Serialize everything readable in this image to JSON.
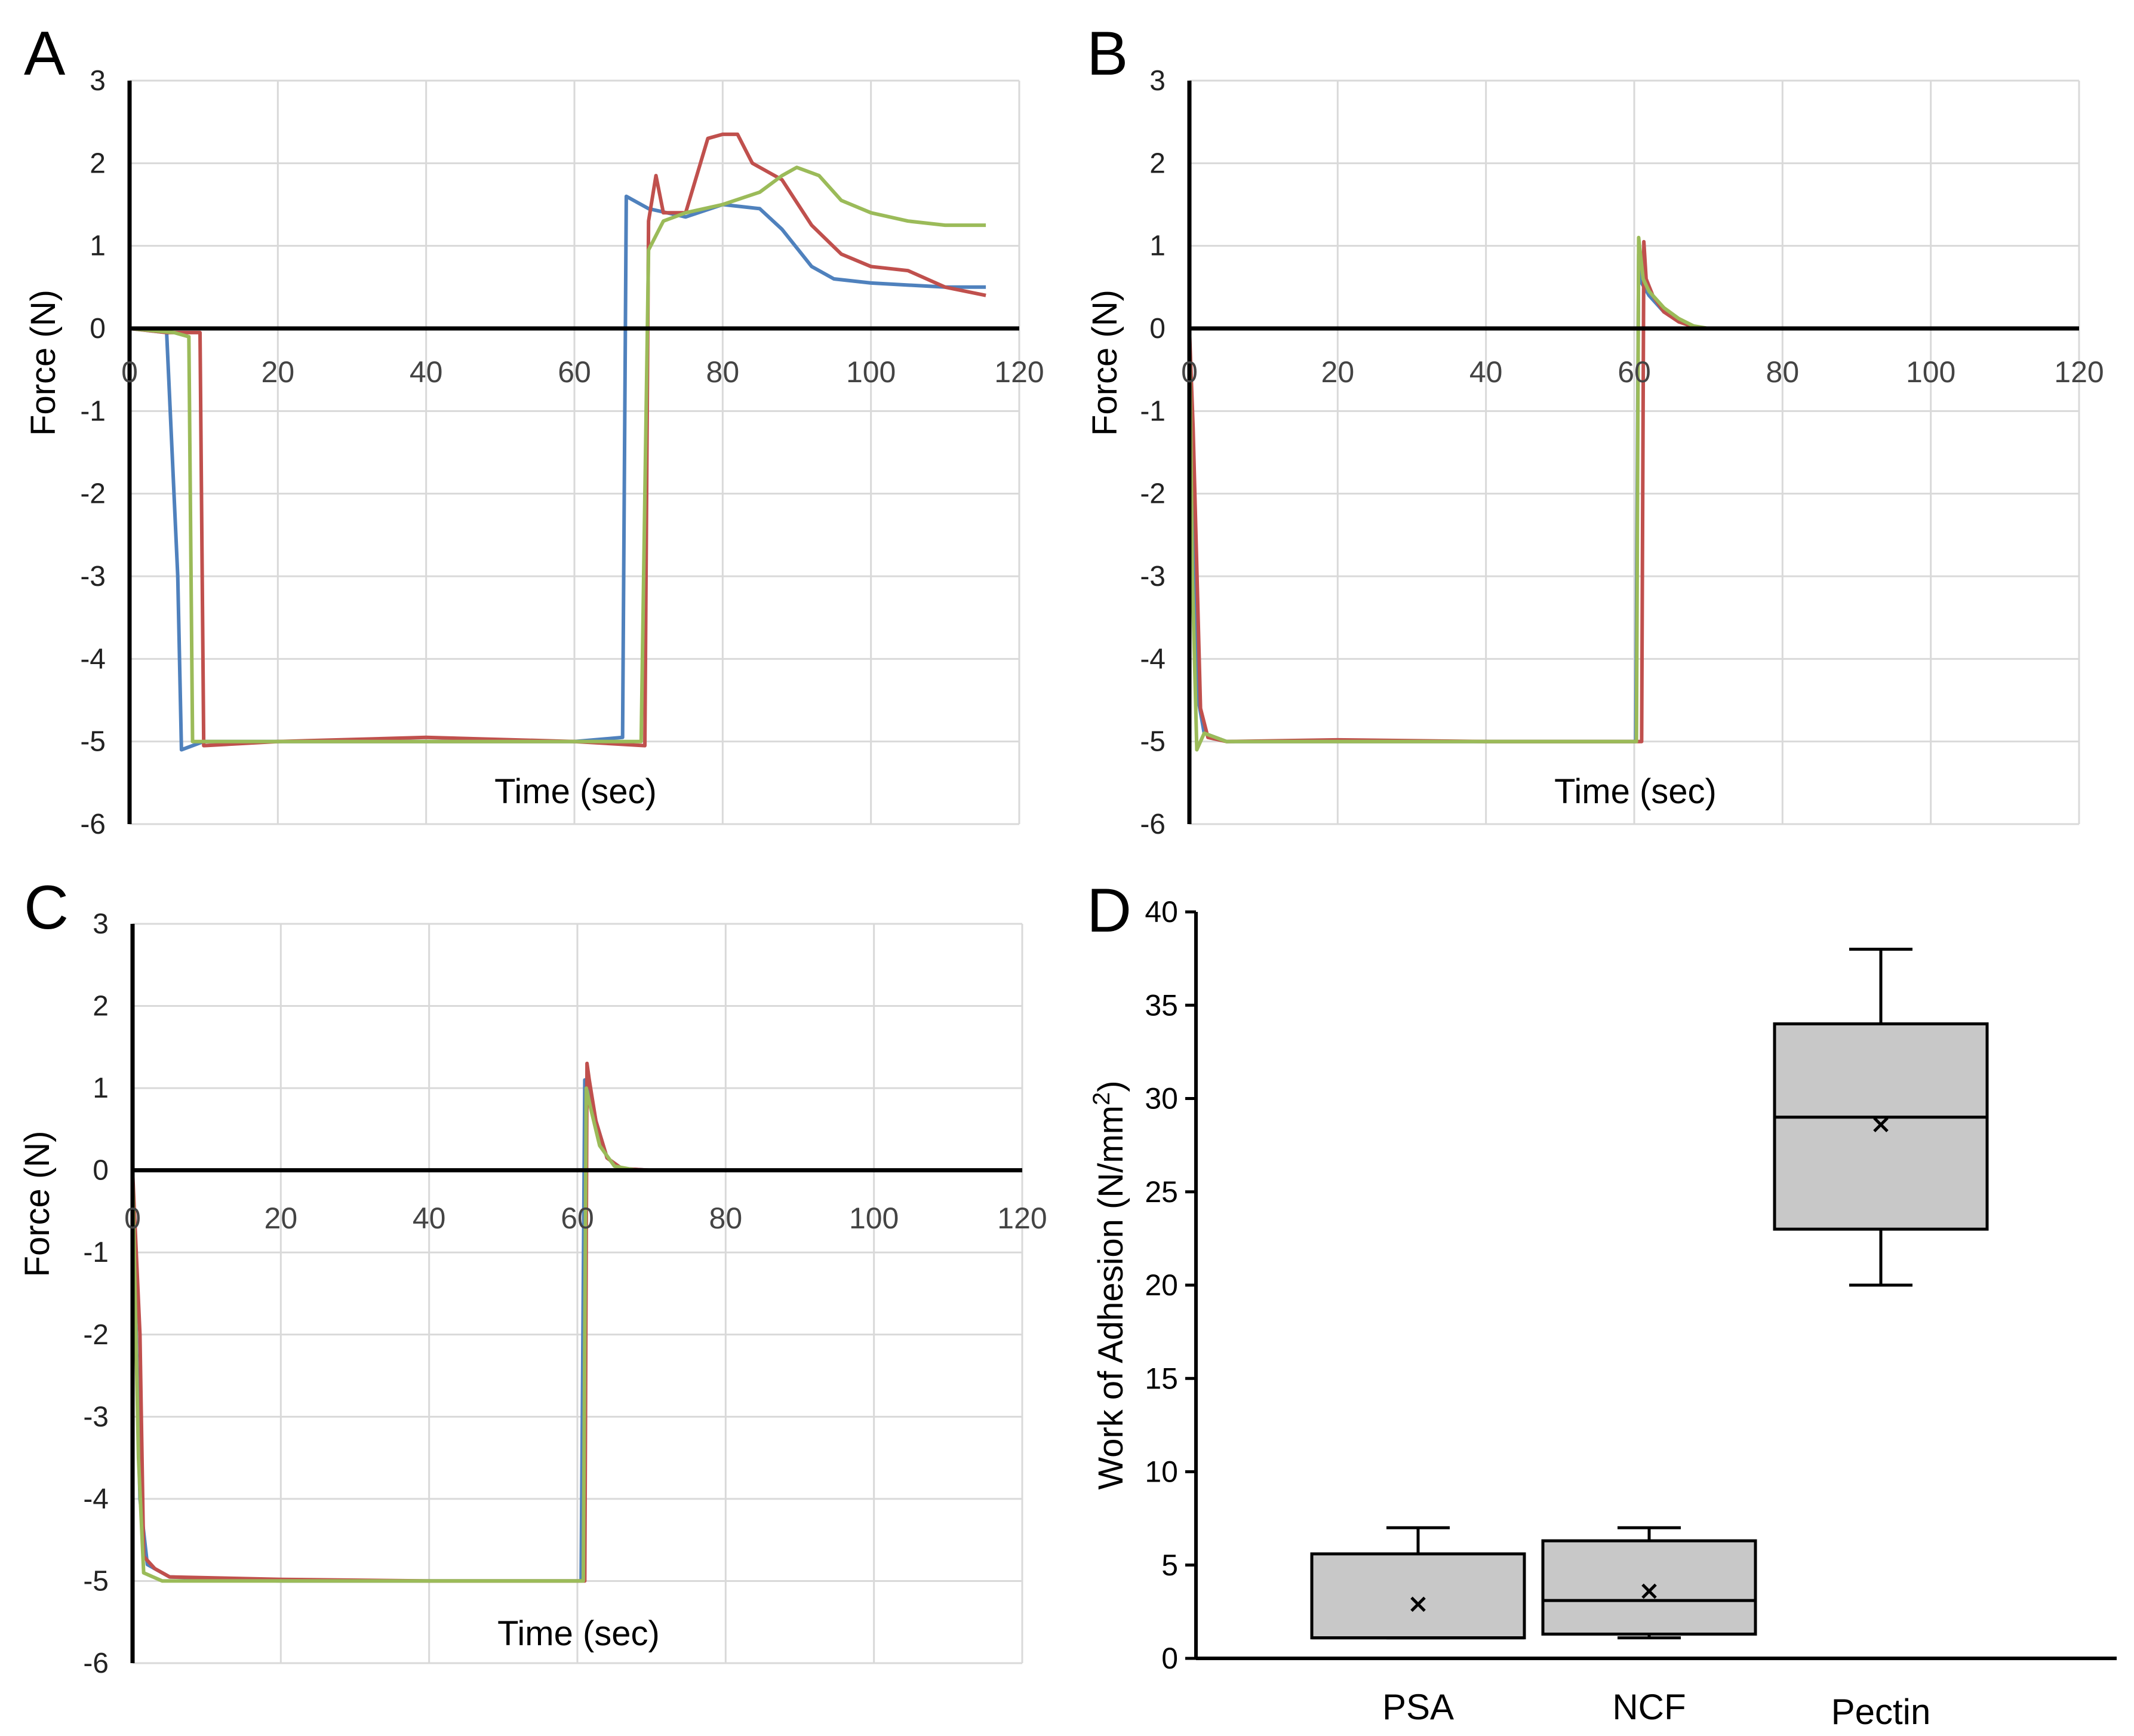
{
  "colors": {
    "blue": "#4f81bd",
    "red": "#c0504d",
    "green": "#9bbb59",
    "box_fill": "#c8c8c8"
  },
  "chart_data": [
    {
      "panel": "A",
      "type": "line",
      "xlabel": "Time (sec)",
      "ylabel": "Force (N)",
      "xlim": [
        0,
        120
      ],
      "ylim": [
        -6,
        3
      ],
      "xticks": [
        "0",
        "20",
        "40",
        "60",
        "80",
        "100",
        "120"
      ],
      "yticks": [
        "3",
        "2",
        "1",
        "0",
        "-1",
        "-2",
        "-3",
        "-4",
        "-5",
        "-6"
      ],
      "grid": true,
      "series": [
        {
          "name": "blue",
          "x": [
            0,
            5,
            6.5,
            7,
            10,
            20,
            40,
            60,
            66.5,
            67,
            68,
            70,
            75,
            80,
            85,
            88,
            92,
            95,
            100,
            110,
            115.5
          ],
          "y": [
            0,
            -0.05,
            -3,
            -5.1,
            -5.0,
            -5.0,
            -5.0,
            -5.0,
            -4.95,
            1.6,
            1.55,
            1.45,
            1.35,
            1.5,
            1.45,
            1.2,
            0.75,
            0.6,
            0.55,
            0.5,
            0.5
          ]
        },
        {
          "name": "red",
          "x": [
            0,
            5,
            9.5,
            10,
            20,
            40,
            60,
            69.5,
            70,
            71,
            72,
            75,
            78,
            80,
            82,
            84,
            88,
            92,
            96,
            100,
            105,
            110,
            115.5
          ],
          "y": [
            0,
            -0.05,
            -0.05,
            -5.05,
            -5.0,
            -4.95,
            -5.0,
            -5.05,
            1.3,
            1.85,
            1.4,
            1.4,
            2.3,
            2.35,
            2.35,
            2.0,
            1.8,
            1.25,
            0.9,
            0.75,
            0.7,
            0.5,
            0.4
          ]
        },
        {
          "name": "green",
          "x": [
            0,
            6,
            8,
            8.5,
            20,
            40,
            60,
            69,
            70,
            72,
            75,
            80,
            85,
            88,
            90,
            93,
            96,
            100,
            105,
            110,
            115.5
          ],
          "y": [
            0,
            -0.05,
            -0.1,
            -5.0,
            -5.0,
            -5.0,
            -5.0,
            -5.0,
            0.95,
            1.3,
            1.4,
            1.5,
            1.65,
            1.85,
            1.95,
            1.85,
            1.55,
            1.4,
            1.3,
            1.25,
            1.25
          ]
        }
      ]
    },
    {
      "panel": "B",
      "type": "line",
      "xlabel": "Time (sec)",
      "ylabel": "Force (N)",
      "xlim": [
        0,
        120
      ],
      "ylim": [
        -6,
        3
      ],
      "xticks": [
        "0",
        "20",
        "40",
        "60",
        "80",
        "100",
        "120"
      ],
      "yticks": [
        "3",
        "2",
        "1",
        "0",
        "-1",
        "-2",
        "-3",
        "-4",
        "-5",
        "-6"
      ],
      "grid": true,
      "series": [
        {
          "name": "blue",
          "x": [
            0,
            0.5,
            1.2,
            2,
            5,
            20,
            40,
            60.2,
            60.6,
            61,
            62,
            64,
            66,
            68,
            70,
            75
          ],
          "y": [
            0,
            -2,
            -4.5,
            -4.9,
            -5.0,
            -5.0,
            -5.0,
            -5.0,
            0.9,
            0.55,
            0.4,
            0.2,
            0.1,
            0.02,
            0,
            0
          ]
        },
        {
          "name": "red",
          "x": [
            0,
            0.5,
            1.5,
            2.5,
            5,
            20,
            40,
            61,
            61.3,
            61.6,
            62.5,
            64,
            66,
            68,
            70,
            75
          ],
          "y": [
            0,
            -1.2,
            -4.6,
            -4.95,
            -5.0,
            -4.98,
            -5.0,
            -5.0,
            1.05,
            0.6,
            0.4,
            0.2,
            0.08,
            0.02,
            0,
            0
          ]
        },
        {
          "name": "green",
          "x": [
            0,
            0.4,
            1,
            2,
            5,
            20,
            40,
            60.3,
            60.6,
            61.2,
            62,
            64,
            66,
            68,
            70,
            75
          ],
          "y": [
            0,
            -3,
            -5.1,
            -4.9,
            -5.0,
            -5.0,
            -5.0,
            -5.0,
            1.1,
            0.6,
            0.45,
            0.25,
            0.12,
            0.03,
            0,
            0
          ]
        }
      ]
    },
    {
      "panel": "C",
      "type": "line",
      "xlabel": "Time (sec)",
      "ylabel": "Force (N)",
      "xlim": [
        0,
        120
      ],
      "ylim": [
        -6,
        3
      ],
      "xticks": [
        "0",
        "20",
        "40",
        "60",
        "80",
        "100",
        "120"
      ],
      "yticks": [
        "3",
        "2",
        "1",
        "0",
        "-1",
        "-2",
        "-3",
        "-4",
        "-5",
        "-6"
      ],
      "grid": true,
      "series": [
        {
          "name": "blue",
          "x": [
            0,
            1,
            2,
            5,
            20,
            40,
            60.5,
            61,
            61.6,
            62.5,
            64,
            66,
            70,
            75
          ],
          "y": [
            0,
            -4,
            -4.8,
            -4.95,
            -5.0,
            -5.0,
            -5.0,
            1.1,
            1.05,
            0.6,
            0.15,
            0.02,
            0,
            0
          ]
        },
        {
          "name": "red",
          "x": [
            0,
            1,
            1.5,
            3,
            5,
            20,
            40,
            61,
            61.3,
            61.6,
            62.5,
            64,
            66,
            70,
            75
          ],
          "y": [
            0,
            -2,
            -4.7,
            -4.85,
            -4.95,
            -4.98,
            -5.0,
            -5.0,
            1.3,
            1.1,
            0.6,
            0.15,
            0.02,
            0,
            0
          ]
        },
        {
          "name": "green",
          "x": [
            0,
            0.8,
            1.5,
            4,
            20,
            40,
            60.8,
            61.2,
            61.8,
            63,
            65,
            68,
            72
          ],
          "y": [
            0,
            -3.5,
            -4.9,
            -5.0,
            -5.0,
            -5.0,
            -5.0,
            1.0,
            0.75,
            0.3,
            0.05,
            0,
            0
          ]
        }
      ]
    },
    {
      "panel": "D",
      "type": "box",
      "ylabel": "Work of Adhesion (N/mm",
      "ylabel_superscript": "2",
      "ylabel_close": ")",
      "ylim": [
        0,
        40
      ],
      "yticks": [
        "40",
        "35",
        "30",
        "25",
        "20",
        "15",
        "10",
        "5",
        "0"
      ],
      "categories": [
        "PSA",
        "NCF",
        "Pectin"
      ],
      "boxes": [
        {
          "min": 1.1,
          "q1": 1.1,
          "median": 1.1,
          "q3": 5.6,
          "max": 7.0,
          "mean": 2.9
        },
        {
          "min": 1.1,
          "q1": 1.3,
          "median": 3.1,
          "q3": 6.3,
          "max": 7.0,
          "mean": 3.6
        },
        {
          "min": 20.0,
          "q1": 23.0,
          "median": 29.0,
          "q3": 34.0,
          "max": 38.0,
          "mean": 28.6
        }
      ]
    }
  ]
}
